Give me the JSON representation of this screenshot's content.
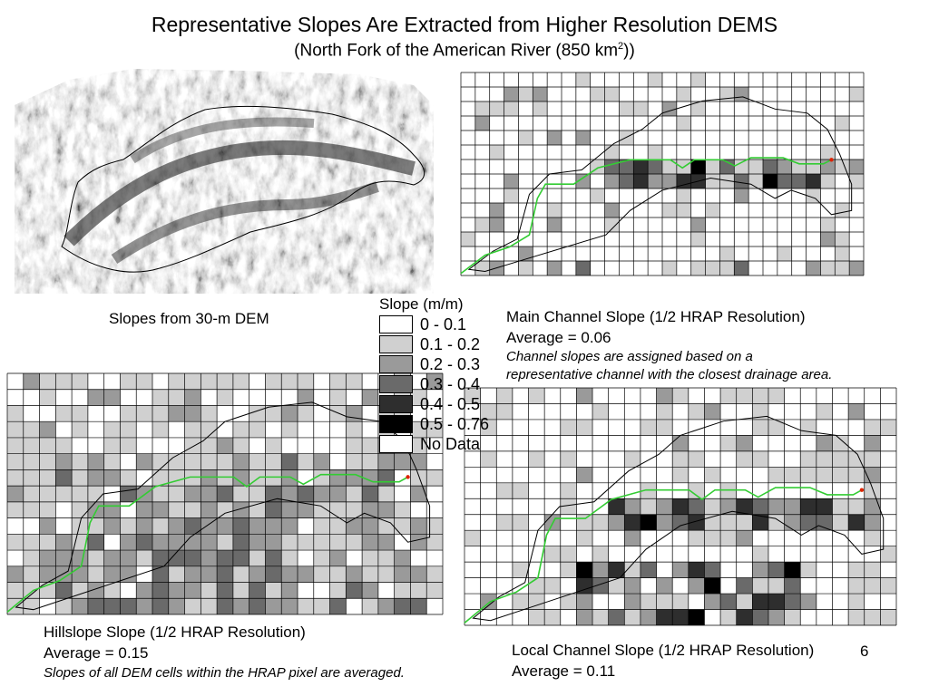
{
  "title": "Representative Slopes Are Extracted from Higher Resolution DEMS",
  "subtitle_main": "(North Fork of the American River (850 km",
  "subtitle_sup": "2",
  "subtitle_end": "))",
  "dem_panel": {
    "caption": "Slopes from 30-m DEM"
  },
  "legend": {
    "title": "Slope (m/m)",
    "items": [
      {
        "label": "0 - 0.1",
        "color": "#ffffff"
      },
      {
        "label": "0.1 - 0.2",
        "color": "#d0d0d0"
      },
      {
        "label": "0.2 - 0.3",
        "color": "#9a9a9a"
      },
      {
        "label": "0.3 - 0.4",
        "color": "#6a6a6a"
      },
      {
        "label": "0.4 - 0.5",
        "color": "#2e2e2e"
      },
      {
        "label": "0.5 - 0.76",
        "color": "#000000"
      },
      {
        "label": "No Data",
        "color": "#ffffff"
      }
    ]
  },
  "panels": {
    "main_channel": {
      "caption": "Main Channel Slope (1/2 HRAP Resolution)",
      "average": "Average = 0.06",
      "note_1": "Channel slopes are assigned based on a",
      "note_2": "representative channel with the closest drainage area."
    },
    "hillslope": {
      "caption": "Hillslope Slope (1/2 HRAP Resolution)",
      "average": "Average = 0.15",
      "note": "Slopes of all DEM cells within the HRAP pixel are averaged."
    },
    "local_channel": {
      "caption": "Local Channel Slope (1/2 HRAP Resolution)",
      "average": "Average = 0.11"
    }
  },
  "page_number": "6",
  "colors": {
    "channel_line": "#33cc33",
    "outlet_marker": "#dd2200",
    "grid_line": "#000000"
  }
}
